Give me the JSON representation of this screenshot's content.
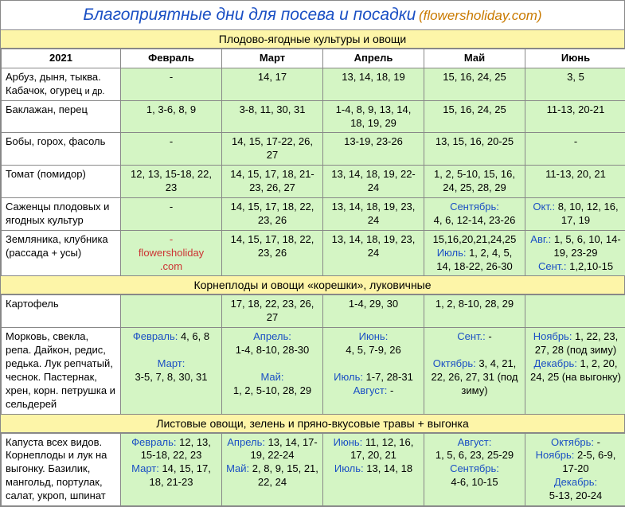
{
  "title_main": "Благоприятные дни для посева и посадки",
  "title_sub": "(flowersholiday.com)",
  "year": "2021",
  "months": [
    "Февраль",
    "Март",
    "Апрель",
    "Май",
    "Июнь"
  ],
  "section1": "Плодово-ягодные культуры и овощи",
  "section2": "Корнеплоды и овощи «корешки», луковичные",
  "section3": "Листовые овощи, зелень и пряно-вкусовые травы + выгонка",
  "watermark_line1": "flowersholiday",
  "watermark_line2": ".com",
  "s1r1_crop": "Арбуз, дыня, тыква. Кабачок, огурец ",
  "s1r1_sub": "и др.",
  "s1r1_c1": "-",
  "s1r1_c2": "14, 17",
  "s1r1_c3": "13, 14, 18, 19",
  "s1r1_c4": "15, 16, 24, 25",
  "s1r1_c5": "3, 5",
  "s1r2_crop": "Баклажан, перец",
  "s1r2_c1": "1, 3-6, 8, 9",
  "s1r2_c2": "3-8, 11, 30, 31",
  "s1r2_c3": "1-4, 8, 9, 13, 14, 18, 19, 29",
  "s1r2_c4": "15, 16,  24, 25",
  "s1r2_c5": "11-13, 20-21",
  "s1r3_crop": "Бобы, горох, фасоль",
  "s1r3_c1": "-",
  "s1r3_c2": "14, 15, 17-22, 26, 27",
  "s1r3_c3": "13-19, 23-26",
  "s1r3_c4": "13, 15, 16, 20-25",
  "s1r3_c5": "-",
  "s1r4_crop": "Томат (помидор)",
  "s1r4_c1": "12, 13, 15-18, 22, 23",
  "s1r4_c2": "14, 15, 17, 18, 21-23, 26, 27",
  "s1r4_c3": "13, 14, 18, 19, 22-24",
  "s1r4_c4": "1, 2, 5-10, 15, 16, 24, 25, 28, 29",
  "s1r4_c5": "11-13, 20, 21",
  "s1r5_crop": "Саженцы плодовых и ягодных культур",
  "s1r5_c1": "-",
  "s1r5_c2": "14, 15, 17, 18, 22, 23, 26",
  "s1r5_c3": "13, 14, 18, 19, 23, 24",
  "s1r5_c4_lbl": "Сентябрь:",
  "s1r5_c4_val": "4, 6, 12-14, 23-26",
  "s1r5_c5_lbl": "Окт.:",
  "s1r5_c5_val": " 8, 10, 12, 16, 17, 19",
  "s1r6_crop": "Земляника, клубника (рассада + усы)",
  "s1r6_c2": "14, 15, 17, 18, 22, 23, 26",
  "s1r6_c3": "13, 14, 18, 19, 23, 24",
  "s1r6_c4a": "15,16,20,21,24,25",
  "s1r6_c4b_lbl": "Июль:",
  "s1r6_c4b_val": " 1, 2, 4, 5, 14, 18-22, 26-30",
  "s1r6_c5a_lbl": "Авг.:",
  "s1r6_c5a_val": " 1, 5, 6, 10, 14-19, 23-29",
  "s1r6_c5b_lbl": "Сент.:",
  "s1r6_c5b_val": " 1,2,10-15",
  "s2r1_crop": "Картофель",
  "s2r1_c1": "",
  "s2r1_c2": "17, 18, 22, 23, 26, 27",
  "s2r1_c3": "1-4, 29, 30",
  "s2r1_c4": "1, 2, 8-10, 28, 29",
  "s2r1_c5": "",
  "s2r2_crop": "Морковь, свекла, репа. Дайкон, редис, редька. Лук репчатый, чеснок. Пастернак, хрен, корн. петрушка и сельдерей",
  "s2r2_c1_lbl1": "Февраль:",
  "s2r2_c1_v1": " 4, 6, 8",
  "s2r2_c1_lbl2": "Март:",
  "s2r2_c1_v2": "3-5, 7, 8, 30, 31",
  "s2r2_c2_lbl1": "Апрель:",
  "s2r2_c2_v1": "1-4, 8-10, 28-30",
  "s2r2_c2_lbl2": "Май:",
  "s2r2_c2_v2": "1, 2, 5-10, 28, 29",
  "s2r2_c3_lbl1": "Июнь:",
  "s2r2_c3_v1": "4, 5, 7-9, 26",
  "s2r2_c3_lbl2": "Июль:",
  "s2r2_c3_v2": " 1-7, 28-31",
  "s2r2_c3_lbl3": "Август:",
  "s2r2_c3_v3": " -",
  "s2r2_c4_lbl1": "Сент.:",
  "s2r2_c4_v1": " -",
  "s2r2_c4_lbl2": "Октябрь:",
  "s2r2_c4_v2": " 3, 4, 21, 22, 26, 27, 31 (под зиму)",
  "s2r2_c5_lbl1": "Ноябрь:",
  "s2r2_c5_v1": " 1, 22, 23, 27, 28 (под зиму)",
  "s2r2_c5_lbl2": "Декабрь:",
  "s2r2_c5_v2": " 1, 2, 20, 24, 25 (на выгонку)",
  "s3r1_crop": "Капуста всех видов. Корнеплоды и лук на выгонку. Базилик, мангольд, портулак, салат, укроп, шпинат",
  "s3r1_c1_lbl1": "Февраль:",
  "s3r1_c1_v1": " 12, 13, 15-18, 22, 23",
  "s3r1_c1_lbl2": "Март:",
  "s3r1_c1_v2": " 14, 15, 17, 18, 21-23",
  "s3r1_c2_lbl1": "Апрель:",
  "s3r1_c2_v1": " 13, 14, 17-19, 22-24",
  "s3r1_c2_lbl2": "Май:",
  "s3r1_c2_v2": " 2, 8, 9, 15, 21, 22, 24",
  "s3r1_c3_lbl1": "Июнь:",
  "s3r1_c3_v1": " 11, 12, 16, 17, 20, 21",
  "s3r1_c3_lbl2": "Июль:",
  "s3r1_c3_v2": " 13, 14, 18",
  "s3r1_c4_lbl1": "Август:",
  "s3r1_c4_v1": "1, 5, 6, 23, 25-29",
  "s3r1_c4_lbl2": "Сентябрь:",
  "s3r1_c4_v2": "4-6, 10-15",
  "s3r1_c5_lbl1": "Октябрь:",
  "s3r1_c5_v1": " -",
  "s3r1_c5_lbl2": "Ноябрь:",
  "s3r1_c5_v2": " 2-5, 6-9, 17-20",
  "s3r1_c5_lbl3": "Декабрь:",
  "s3r1_c5_v3": "5-13, 20-24"
}
